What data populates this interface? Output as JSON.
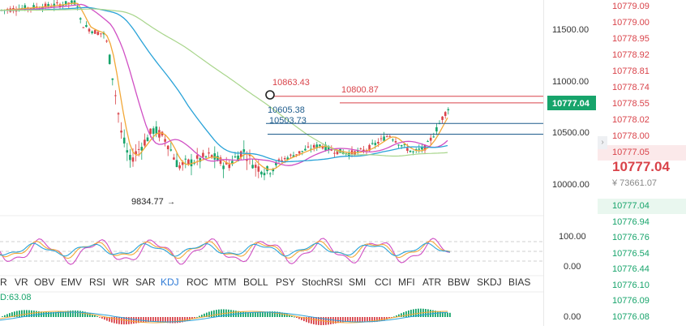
{
  "price_axis": {
    "labels": [
      "11500.00",
      "11000.00",
      "10500.00",
      "10000.00"
    ],
    "current_price_tag": "10777.04"
  },
  "kdj_axis": {
    "labels": [
      "100.00",
      "0.00"
    ]
  },
  "macd_axis": {
    "labels": [
      "0.00"
    ]
  },
  "annotations": {
    "low_marker": "9834.77",
    "level_a": "10863.43",
    "level_b": "10800.87",
    "level_c": "10605.38",
    "level_d": "10503.73"
  },
  "indicator_tabs": [
    "R",
    "VR",
    "OBV",
    "EMV",
    "RSI",
    "WR",
    "SAR",
    "KDJ",
    "ROC",
    "MTM",
    "BOLL",
    "PSY",
    "StochRSI",
    "SMI",
    "CCI",
    "MFI",
    "ATR",
    "BBW",
    "SKDJ",
    "BIAS"
  ],
  "active_tab": "KDJ",
  "macd_readout": "D:63.08",
  "order_book": {
    "asks": [
      "10779.09",
      "10779.00",
      "10778.95",
      "10778.92",
      "10778.81",
      "10778.74",
      "10778.55",
      "10778.02",
      "10778.00",
      "10777.05"
    ],
    "last_price": "10777.04",
    "last_price_fiat": "¥ 73661.07",
    "bids": [
      "10777.04",
      "10776.94",
      "10776.76",
      "10776.54",
      "10776.44",
      "10776.10",
      "10776.09",
      "10776.08"
    ]
  },
  "colors": {
    "up": "#17a46b",
    "down": "#d9434a",
    "ma_fast": "#f2a838",
    "ma_mid": "#d04fc4",
    "ma_slow": "#2aa3d8",
    "ma_long": "#a8d58b",
    "level_red": "#d9434a",
    "level_blue": "#1e5c8c",
    "active_tab": "#2f7bd6"
  }
}
